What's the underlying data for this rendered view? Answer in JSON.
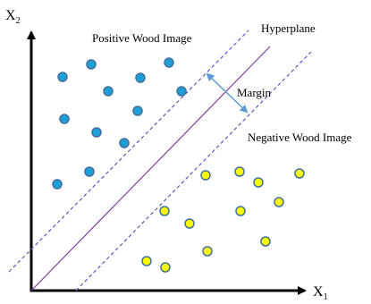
{
  "labels": {
    "x_axis": "X",
    "x_axis_subscript": "1",
    "y_axis": "X",
    "y_axis_subscript": "2",
    "positive_class": "Positive Wood Image",
    "negative_class": "Negative Wood Image",
    "hyperplane": "Hyperplane",
    "margin": "Margin"
  },
  "colors": {
    "axis": "#000000",
    "hyperplane": "#7b3f9e",
    "margin_lines": "#5b5bc4",
    "margin_arrow": "#5b9bd5",
    "positive_fill": "#1f9fd8",
    "negative_fill": "#ffff00",
    "point_outline": "#41719c"
  }
}
